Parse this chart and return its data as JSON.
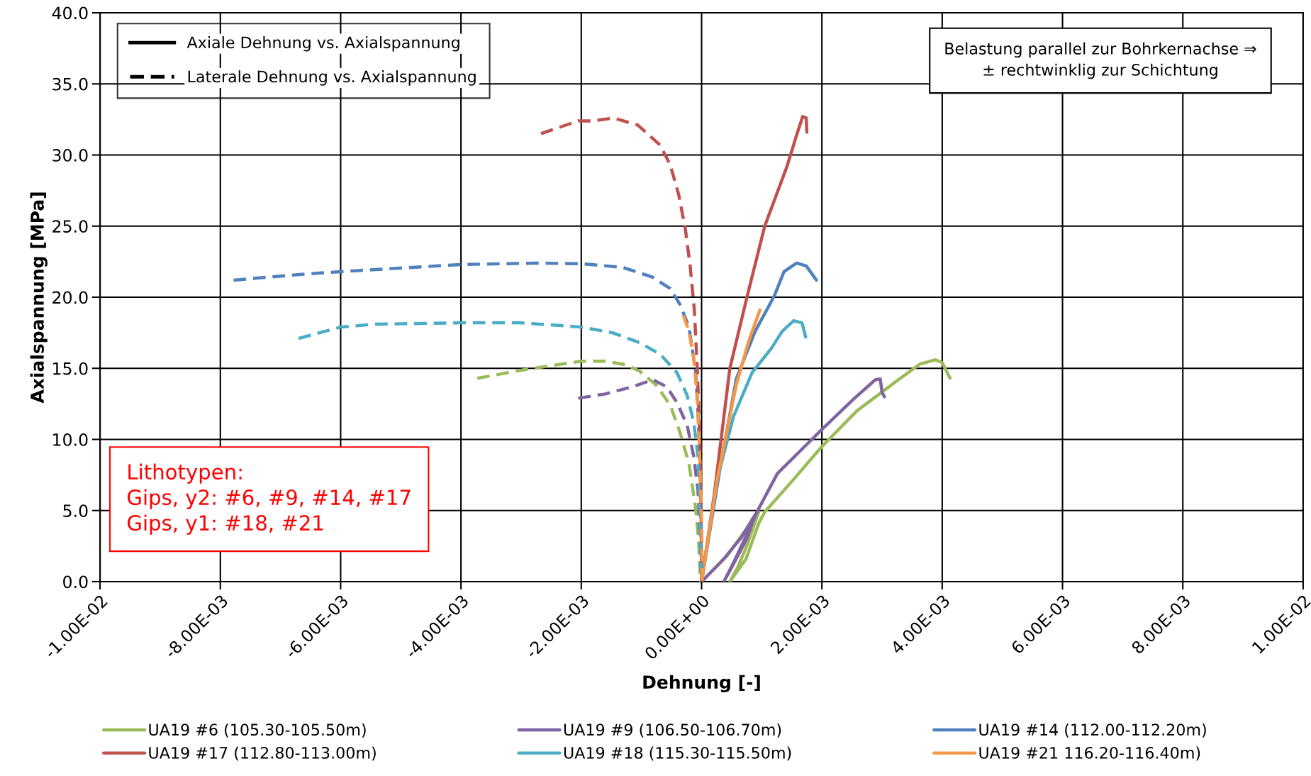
{
  "chart_data": {
    "type": "line",
    "xlabel": "Dehnung [-]",
    "ylabel": "Axialspannung [MPa]",
    "xlim": [
      -0.01,
      0.01
    ],
    "ylim": [
      0,
      40
    ],
    "xticks": [
      {
        "value": -0.01,
        "label": "-1.00E-02"
      },
      {
        "value": -0.008,
        "label": "-8.00E-03"
      },
      {
        "value": -0.006,
        "label": "-6.00E-03"
      },
      {
        "value": -0.004,
        "label": "-4.00E-03"
      },
      {
        "value": -0.002,
        "label": "-2.00E-03"
      },
      {
        "value": 0,
        "label": "0.00E+00"
      },
      {
        "value": 0.002,
        "label": "2.00E-03"
      },
      {
        "value": 0.004,
        "label": "4.00E-03"
      },
      {
        "value": 0.006,
        "label": "6.00E-03"
      },
      {
        "value": 0.008,
        "label": "8.00E-03"
      },
      {
        "value": 0.01,
        "label": "1.00E-02"
      }
    ],
    "yticks": [
      {
        "value": 0,
        "label": "0.0"
      },
      {
        "value": 5,
        "label": "5.0"
      },
      {
        "value": 10,
        "label": "10.0"
      },
      {
        "value": 15,
        "label": "15.0"
      },
      {
        "value": 20,
        "label": "20.0"
      },
      {
        "value": 25,
        "label": "25.0"
      },
      {
        "value": 30,
        "label": "30.0"
      },
      {
        "value": 35,
        "label": "35.0"
      },
      {
        "value": 40,
        "label": "40.0"
      }
    ],
    "grid": true,
    "legend": "bottom",
    "marker": "none",
    "annotations": [
      "Axiale Dehnung vs. Axialspannung",
      "Laterale Dehnung vs. Axialspannung",
      "Belastung parallel zur Bohrkernachse ⇒\n± rechtwinklig zur Schichtung",
      "Lithotypen:\nGips, y2: #6, #9, #14, #17\nGips, y1: #18, #21"
    ],
    "series": [
      {
        "name": "UA19 #6 (105.30-105.50m)",
        "color": "#9bbb59",
        "line_style": "solid",
        "x": [
          0,
          0.00042,
          0.00076,
          0.00095,
          0.00075,
          0.0006,
          0.00047,
          0.00074,
          0.00095,
          0.00105,
          0.00147,
          0.002,
          0.00258,
          0.00321,
          0.00363,
          0.00389,
          0.004,
          0.00413
        ],
        "values": [
          0,
          1.8,
          3.8,
          4.9,
          2.5,
          1.0,
          0,
          1.6,
          4.1,
          4.9,
          6.9,
          9.5,
          12.0,
          14.0,
          15.3,
          15.6,
          15.4,
          14.3
        ]
      },
      {
        "name": "UA19 #9 (106.50-106.70m)",
        "color": "#8064a2",
        "line_style": "solid",
        "x": [
          0,
          0.00037,
          0.00066,
          0.00089,
          0.00075,
          0.0005,
          0.00037,
          0.00055,
          0.00075,
          0.00092,
          0.00126,
          0.00195,
          0.00253,
          0.00289,
          0.00297,
          0.003,
          0.00304
        ],
        "values": [
          0,
          1.6,
          3.1,
          4.7,
          3.0,
          1.0,
          0,
          1.5,
          3.3,
          4.9,
          7.6,
          10.5,
          12.85,
          14.2,
          14.25,
          13.3,
          13.0
        ]
      },
      {
        "name": "UA19 #14 (112.00-112.20m)",
        "color": "#4f81bd",
        "line_style": "solid",
        "x": [
          0,
          0.00032,
          0.00058,
          0.00089,
          0.00121,
          0.00137,
          0.00158,
          0.00174,
          0.00191
        ],
        "values": [
          0,
          8.3,
          14.3,
          17.6,
          20.1,
          21.8,
          22.4,
          22.2,
          21.2
        ]
      },
      {
        "name": "UA19 #17 (112.80-113.00m)",
        "color": "#c0504d",
        "line_style": "solid",
        "x": [
          0,
          0.00021,
          0.00047,
          0.00076,
          0.00105,
          0.00142,
          0.00158,
          0.00168,
          0.00174,
          0.00175
        ],
        "values": [
          0,
          6.1,
          15.0,
          20.1,
          25.0,
          29.2,
          31.4,
          32.7,
          32.6,
          31.6
        ]
      },
      {
        "name": "UA19 #18 (115.30-115.50m)",
        "color": "#4bacc6",
        "line_style": "solid",
        "x": [
          0,
          0.00026,
          0.00053,
          0.00084,
          0.00116,
          0.00134,
          0.00153,
          0.00167,
          0.00173
        ],
        "values": [
          0,
          7.2,
          11.6,
          14.7,
          16.4,
          17.6,
          18.35,
          18.2,
          17.2
        ]
      },
      {
        "name": "UA19 #21 116.20-116.40m)",
        "color": "#f79646",
        "line_style": "solid",
        "x": [
          0,
          0.00026,
          0.00058,
          0.00079,
          0.00097
        ],
        "values": [
          0,
          7.2,
          13.9,
          17.0,
          19.1
        ]
      },
      {
        "color": "#9bbb59",
        "line_style": "dashed",
        "x": [
          -0.00373,
          -0.00295,
          -0.002,
          -0.0016,
          -0.00126,
          -0.00103,
          -0.00075,
          -0.00052,
          -0.00036,
          -0.00021,
          -0.0001,
          -5e-05,
          -2e-05
        ],
        "values": [
          14.3,
          14.9,
          15.5,
          15.5,
          15.25,
          14.8,
          13.8,
          12.4,
          10.5,
          8.3,
          5.2,
          2.9,
          0
        ]
      },
      {
        "color": "#8064a2",
        "line_style": "dashed",
        "x": [
          -0.00205,
          -0.0016,
          -0.00115,
          -0.00081,
          -0.00058,
          -0.00041,
          -0.00024,
          -0.00013,
          -6e-05,
          -2e-05,
          0
        ],
        "values": [
          12.9,
          13.2,
          13.7,
          14.2,
          13.7,
          12.6,
          11.0,
          8.8,
          6.4,
          2.9,
          0
        ]
      },
      {
        "color": "#4f81bd",
        "line_style": "dashed",
        "x": [
          -0.00778,
          -0.00668,
          -0.006,
          -0.004,
          -0.00273,
          -0.002,
          -0.00131,
          -0.00081,
          -0.00052,
          -0.00036,
          -0.00021,
          -0.0001,
          -5e-05,
          -2e-05,
          0
        ],
        "values": [
          21.2,
          21.6,
          21.8,
          22.3,
          22.4,
          22.35,
          22.1,
          21.4,
          20.6,
          19.5,
          17.9,
          14.8,
          11.2,
          6.4,
          0
        ]
      },
      {
        "color": "#c0504d",
        "line_style": "dashed",
        "x": [
          -0.00267,
          -0.00205,
          -0.00182,
          -0.00146,
          -0.00106,
          -0.00069,
          -0.00052,
          -0.00038,
          -0.00027,
          -0.00019,
          -0.00012,
          -7e-05,
          -3e-05,
          -1e-05,
          0
        ],
        "values": [
          31.5,
          32.4,
          32.4,
          32.6,
          32.1,
          30.7,
          29.3,
          27.2,
          24.8,
          22.2,
          19.1,
          14.8,
          10.0,
          5.2,
          0
        ]
      },
      {
        "color": "#4bacc6",
        "line_style": "dashed",
        "x": [
          -0.0067,
          -0.006,
          -0.00543,
          -0.004,
          -0.00301,
          -0.002,
          -0.00148,
          -0.00103,
          -0.00069,
          -0.00041,
          -0.00024,
          -0.00013,
          -6e-05,
          -2e-05,
          0
        ],
        "values": [
          17.1,
          17.9,
          18.1,
          18.2,
          18.2,
          17.9,
          17.5,
          16.8,
          16.0,
          14.7,
          13.1,
          11.2,
          8.8,
          4.1,
          0
        ]
      },
      {
        "color": "#f79646",
        "line_style": "dashed",
        "x": [
          -0.0003,
          -0.00021,
          -0.00013,
          -7e-05,
          -3e-05,
          0,
          1e-05
        ],
        "values": [
          18.7,
          17.6,
          15.7,
          12.9,
          8.8,
          4.1,
          0
        ]
      }
    ]
  }
}
